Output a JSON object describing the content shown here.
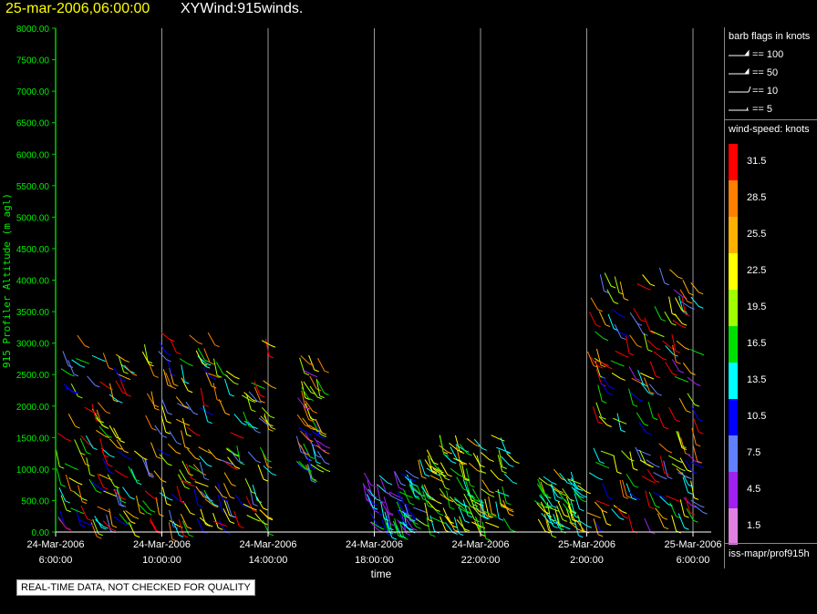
{
  "header": {
    "date_time": "25-mar-2006,06:00:00",
    "product": "XYWind:915winds."
  },
  "notice": "REAL-TIME DATA, NOT CHECKED FOR QUALITY",
  "legend": {
    "barb_title": "barb flags in knots",
    "barb_entries": [
      "== 100",
      "== 50",
      "== 10",
      "== 5"
    ],
    "speed_title": "wind-speed: knots",
    "speed_ticks": [
      "31.5",
      "28.5",
      "25.5",
      "22.5",
      "19.5",
      "16.5",
      "13.5",
      "10.5",
      "7.5",
      "4.5",
      "1.5"
    ],
    "speed_colors": [
      "#ff0000",
      "#ff8000",
      "#ffb000",
      "#ffff00",
      "#a0ff00",
      "#00e000",
      "#00ffff",
      "#0000ff",
      "#6080ff",
      "#a020f0",
      "#e080e0"
    ],
    "footer": "iss-mapr/prof915h"
  },
  "chart_data": {
    "type": "scatter",
    "title": "XYWind:915winds.",
    "xlabel": "time",
    "ylabel": "915 Profiler Altitude (m agl)",
    "ylim": [
      0,
      8000
    ],
    "xlim_hours": [
      0,
      24.3
    ],
    "y_ticks": [
      "0.00",
      "500.00",
      "1000.00",
      "1500.00",
      "2000.00",
      "2500.00",
      "3000.00",
      "3500.00",
      "4000.00",
      "4500.00",
      "5000.00",
      "5500.00",
      "6000.00",
      "6500.00",
      "7000.00",
      "7500.00",
      "8000.00"
    ],
    "x_ticks": [
      {
        "date": "24-Mar-2006",
        "time": "6:00:00",
        "hour": 0
      },
      {
        "date": "24-Mar-2006",
        "time": "10:00:00",
        "hour": 4
      },
      {
        "date": "24-Mar-2006",
        "time": "14:00:00",
        "hour": 8
      },
      {
        "date": "24-Mar-2006",
        "time": "18:00:00",
        "hour": 12
      },
      {
        "date": "24-Mar-2006",
        "time": "22:00:00",
        "hour": 16
      },
      {
        "date": "25-Mar-2006",
        "time": "2:00:00",
        "hour": 20
      },
      {
        "date": "25-Mar-2006",
        "time": "6:00:00",
        "hour": 24
      }
    ],
    "grid": "vertical",
    "legend_position": "right",
    "wind_clusters": [
      {
        "hour_start": 0.0,
        "hour_end": 8.0,
        "alt_low": 150,
        "alt_high": 3200,
        "speed_knots": [
          6,
          34
        ]
      },
      {
        "hour_start": 9.0,
        "hour_end": 9.9,
        "alt_low": 1000,
        "alt_high": 2900,
        "speed_knots": [
          5,
          30
        ]
      },
      {
        "hour_start": 11.5,
        "hour_end": 13.5,
        "alt_low": 150,
        "alt_high": 1000,
        "speed_knots": [
          3,
          18
        ]
      },
      {
        "hour_start": 13.5,
        "hour_end": 17.0,
        "alt_low": 150,
        "alt_high": 1600,
        "speed_knots": [
          12,
          26
        ]
      },
      {
        "hour_start": 18.0,
        "hour_end": 19.7,
        "alt_low": 150,
        "alt_high": 1000,
        "speed_knots": [
          12,
          26
        ]
      },
      {
        "hour_start": 20.0,
        "hour_end": 24.1,
        "alt_low": 200,
        "alt_high": 4200,
        "speed_knots": [
          4,
          34
        ]
      }
    ]
  }
}
